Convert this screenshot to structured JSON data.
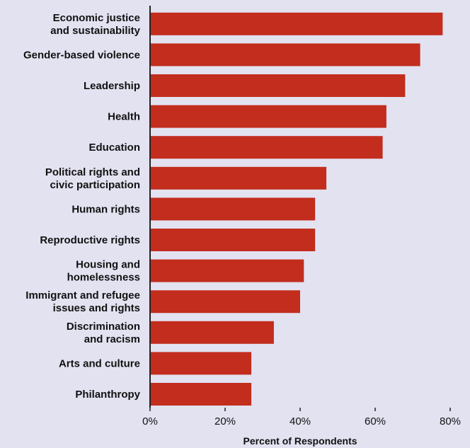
{
  "chart_data": {
    "type": "bar",
    "orientation": "horizontal",
    "categories": [
      [
        "Economic justice",
        "and sustainability"
      ],
      [
        "Gender-based violence"
      ],
      [
        "Leadership"
      ],
      [
        "Health"
      ],
      [
        "Education"
      ],
      [
        "Political rights and",
        "civic participation"
      ],
      [
        "Human rights"
      ],
      [
        "Reproductive rights"
      ],
      [
        "Housing and",
        "homelessness"
      ],
      [
        "Immigrant and refugee",
        "issues and rights"
      ],
      [
        "Discrimination",
        "and racism"
      ],
      [
        "Arts and culture"
      ],
      [
        "Philanthropy"
      ]
    ],
    "values": [
      78,
      72,
      68,
      63,
      62,
      47,
      44,
      44,
      41,
      40,
      33,
      27,
      27
    ],
    "xlabel": "Percent of Respondents",
    "xlim": [
      0,
      80
    ],
    "ticks": [
      0,
      20,
      40,
      60,
      80
    ],
    "tick_labels": [
      "0%",
      "20%",
      "40%",
      "60%",
      "80%"
    ],
    "bar_color": "#c22d1e",
    "background_color": "#e3e2f1",
    "grid": false
  }
}
